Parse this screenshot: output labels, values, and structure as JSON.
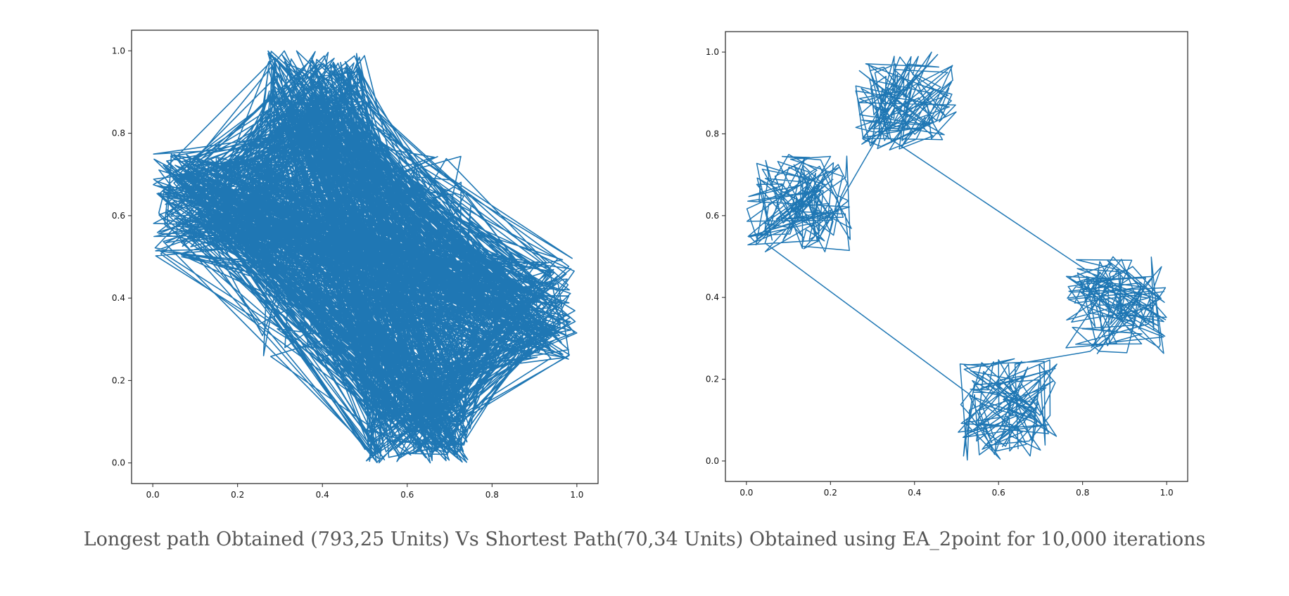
{
  "caption": "Longest path Obtained (793,25 Units) Vs Shortest Path(70,34 Units) Obtained using EA_2point for 10,000 iterations",
  "colors": {
    "line": "#1f77b4",
    "frame": "#222222",
    "caption": "#555555"
  },
  "chart_data": [
    {
      "type": "line",
      "description_key": "longest-path",
      "xlim": [
        -0.05,
        1.05
      ],
      "ylim": [
        -0.05,
        1.05
      ],
      "x_ticks": [
        0.0,
        0.2,
        0.4,
        0.6,
        0.8,
        1.0
      ],
      "y_ticks": [
        0.0,
        0.2,
        0.4,
        0.6,
        0.8,
        1.0
      ],
      "x_tick_labels": [
        "0.0",
        "0.2",
        "0.4",
        "0.6",
        "0.8",
        "1.0"
      ],
      "y_tick_labels": [
        "0.0",
        "0.2",
        "0.4",
        "0.6",
        "0.8",
        "1.0"
      ],
      "grid": false,
      "path_kind": "random-hops",
      "point_clusters": [
        {
          "x_range": [
            0.0,
            0.26
          ],
          "y_range": [
            0.5,
            0.75
          ]
        },
        {
          "x_range": [
            0.27,
            0.5
          ],
          "y_range": [
            0.75,
            1.0
          ]
        },
        {
          "x_range": [
            0.75,
            1.0
          ],
          "y_range": [
            0.25,
            0.5
          ]
        },
        {
          "x_range": [
            0.5,
            0.75
          ],
          "y_range": [
            0.0,
            0.25
          ]
        },
        {
          "x_range": [
            0.25,
            0.75
          ],
          "y_range": [
            0.25,
            0.75
          ]
        }
      ]
    },
    {
      "type": "line",
      "description_key": "shortest-path",
      "xlim": [
        -0.05,
        1.05
      ],
      "ylim": [
        -0.05,
        1.05
      ],
      "x_ticks": [
        0.0,
        0.2,
        0.4,
        0.6,
        0.8,
        1.0
      ],
      "y_ticks": [
        0.0,
        0.2,
        0.4,
        0.6,
        0.8,
        1.0
      ],
      "x_tick_labels": [
        "0.0",
        "0.2",
        "0.4",
        "0.6",
        "0.8",
        "1.0"
      ],
      "y_tick_labels": [
        "0.0",
        "0.2",
        "0.4",
        "0.6",
        "0.8",
        "1.0"
      ],
      "grid": false,
      "path_kind": "cluster-tour",
      "point_clusters": [
        {
          "x_range": [
            0.26,
            0.5
          ],
          "y_range": [
            0.76,
            1.0
          ]
        },
        {
          "x_range": [
            0.0,
            0.25
          ],
          "y_range": [
            0.51,
            0.75
          ]
        },
        {
          "x_range": [
            0.5,
            0.75
          ],
          "y_range": [
            0.0,
            0.25
          ]
        },
        {
          "x_range": [
            0.76,
            1.0
          ],
          "y_range": [
            0.26,
            0.5
          ]
        }
      ],
      "cluster_order": [
        0,
        1,
        2,
        3
      ]
    }
  ]
}
